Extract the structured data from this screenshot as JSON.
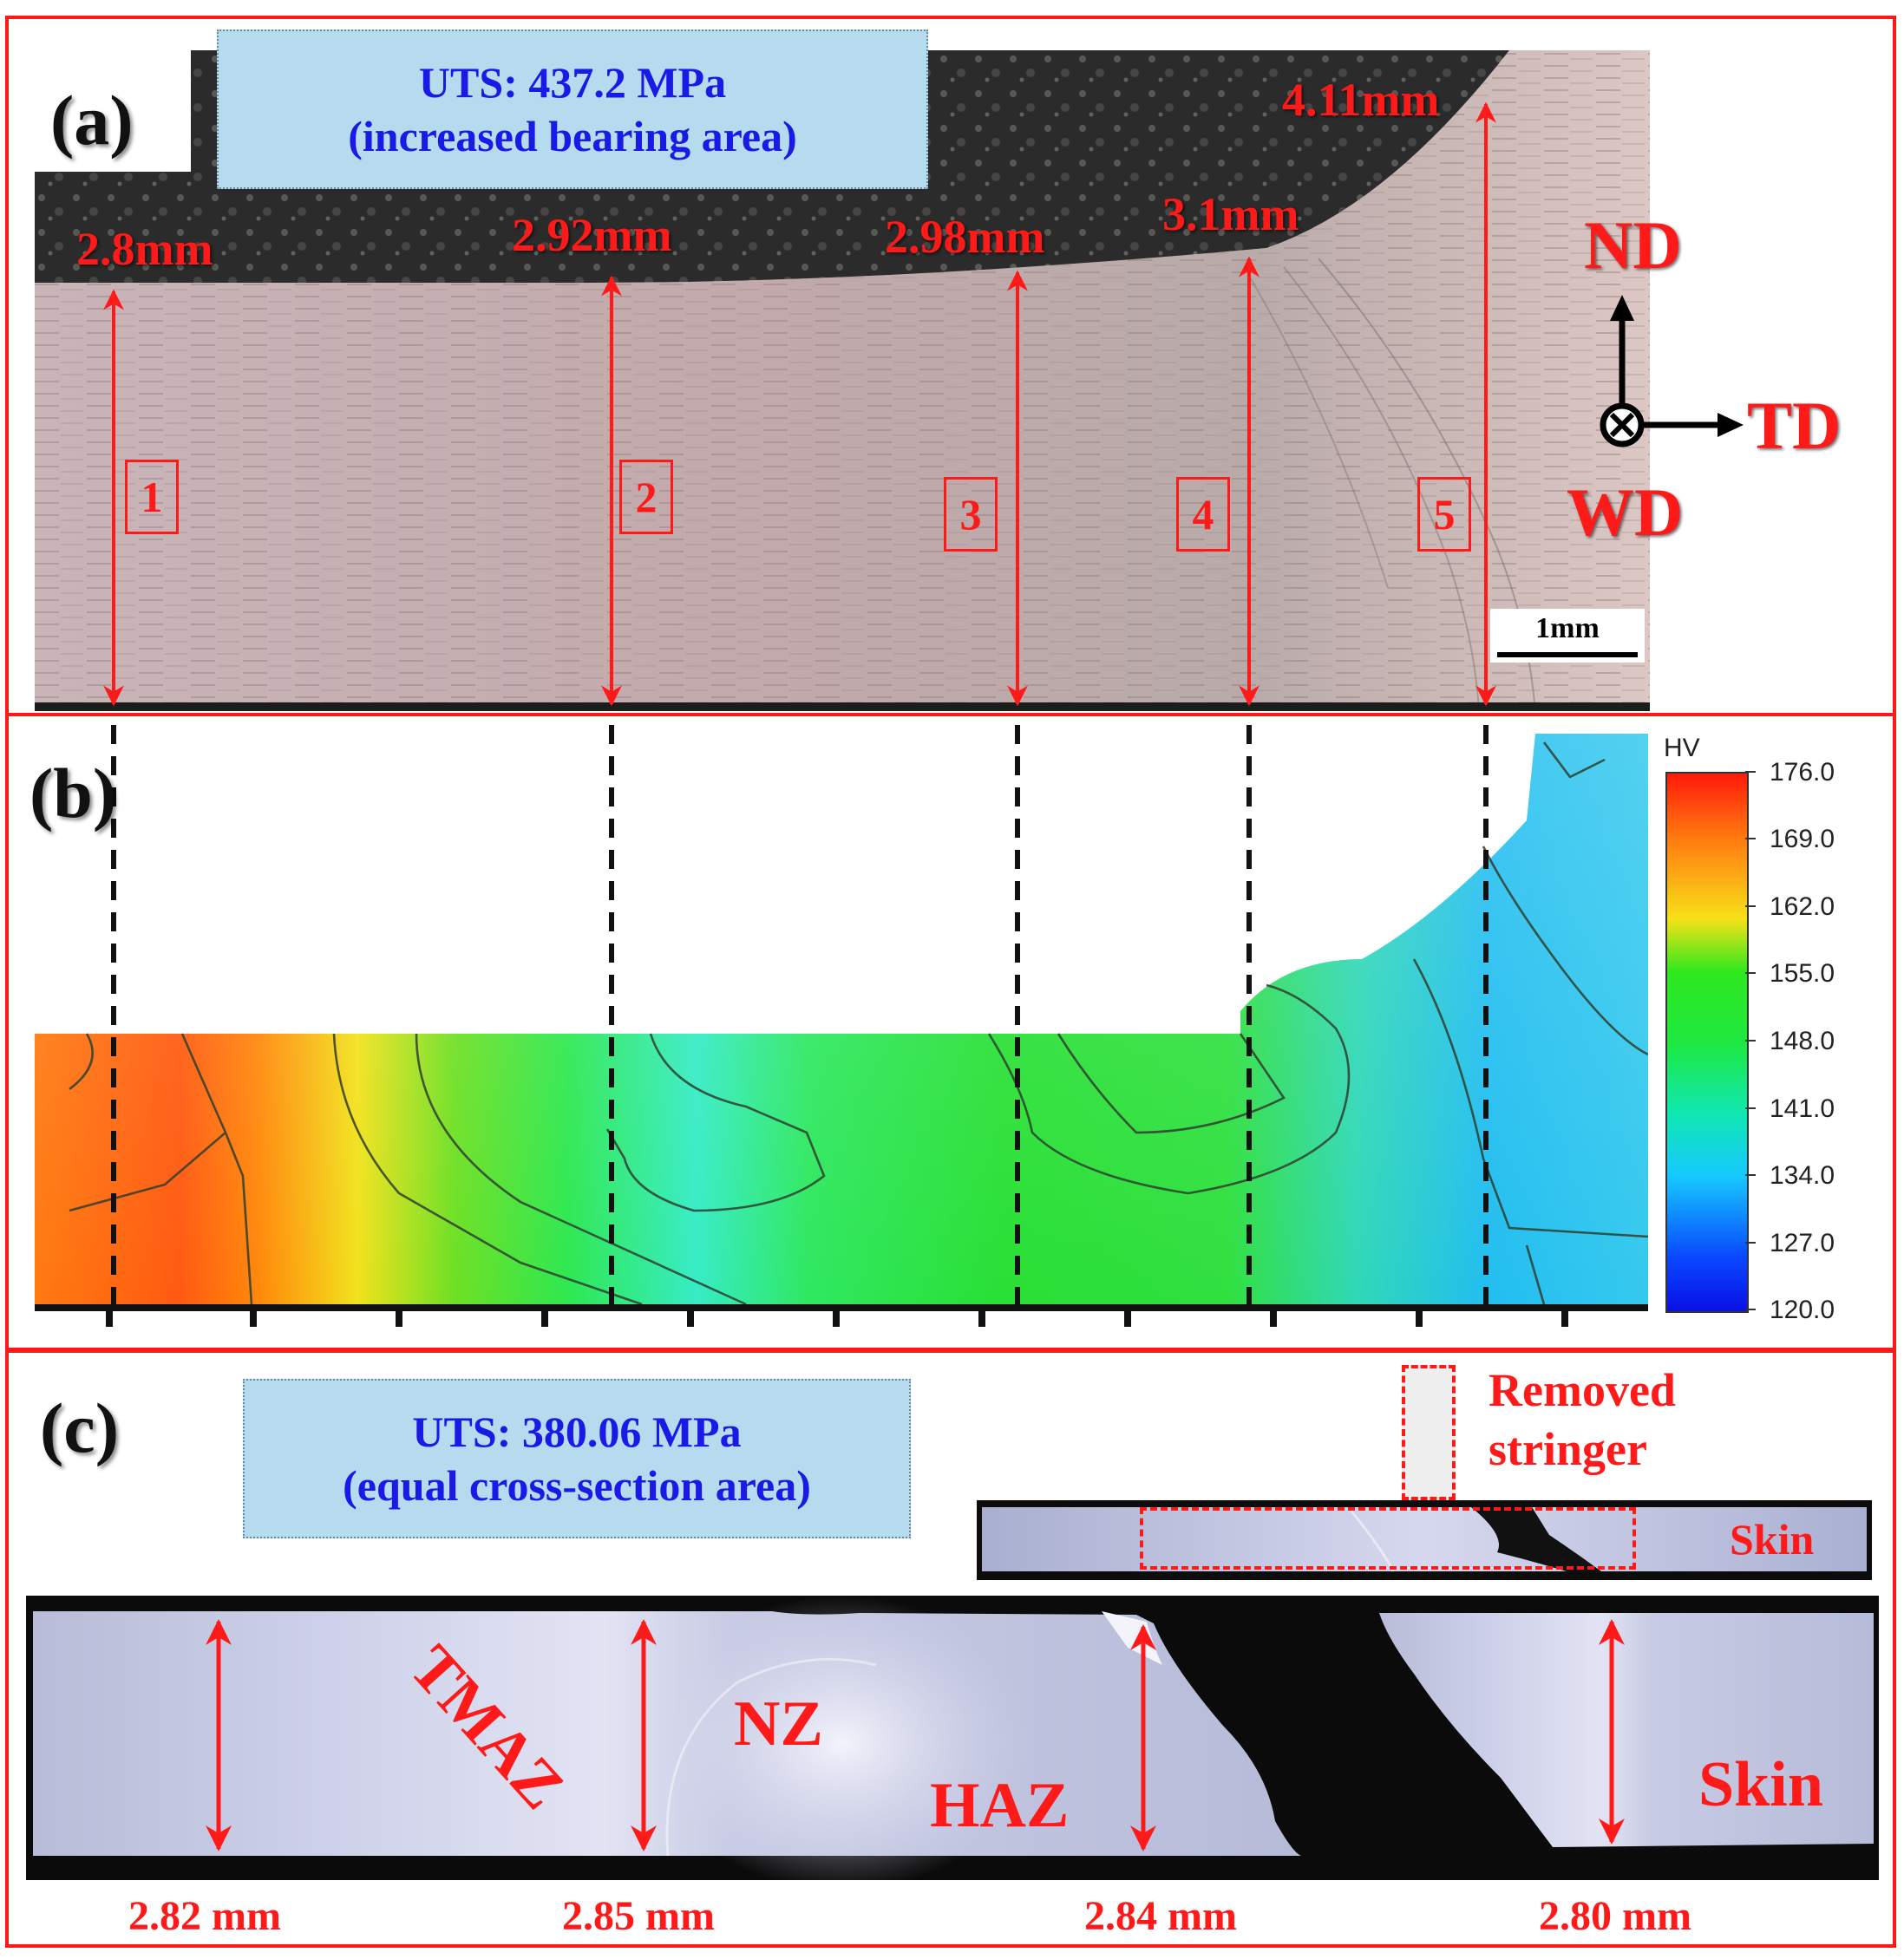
{
  "panel_a": {
    "label": "(a)",
    "uts_line1": "UTS: 437.2 MPa",
    "uts_line2": "(increased bearing area)",
    "thicknesses": [
      "2.8mm",
      "2.92mm",
      "2.98mm",
      "3.1mm",
      "4.11mm"
    ],
    "positions": [
      "1",
      "2",
      "3",
      "4",
      "5"
    ],
    "axes": {
      "nd": "ND",
      "td": "TD",
      "wd": "WD"
    },
    "scale_bar": "1mm"
  },
  "panel_b": {
    "label": "(b)",
    "colorbar_title": "HV",
    "colorbar_ticks": [
      "176.0",
      "169.0",
      "162.0",
      "155.0",
      "148.0",
      "141.0",
      "134.0",
      "127.0",
      "120.0"
    ]
  },
  "panel_c": {
    "label": "(c)",
    "uts_line1": "UTS: 380.06 MPa",
    "uts_line2": "(equal cross-section area)",
    "removed_line1": "Removed",
    "removed_line2": "stringer",
    "skin_small": "Skin",
    "zones": {
      "tmaz": "TMAZ",
      "nz": "NZ",
      "haz": "HAZ",
      "skin": "Skin"
    },
    "thicknesses": [
      "2.82 mm",
      "2.85 mm",
      "2.84 mm",
      "2.80 mm"
    ]
  },
  "colors": {
    "frame": "#ff1a1a",
    "uts_box": "#b7dbee",
    "uts_text": "#1a1ae6"
  }
}
